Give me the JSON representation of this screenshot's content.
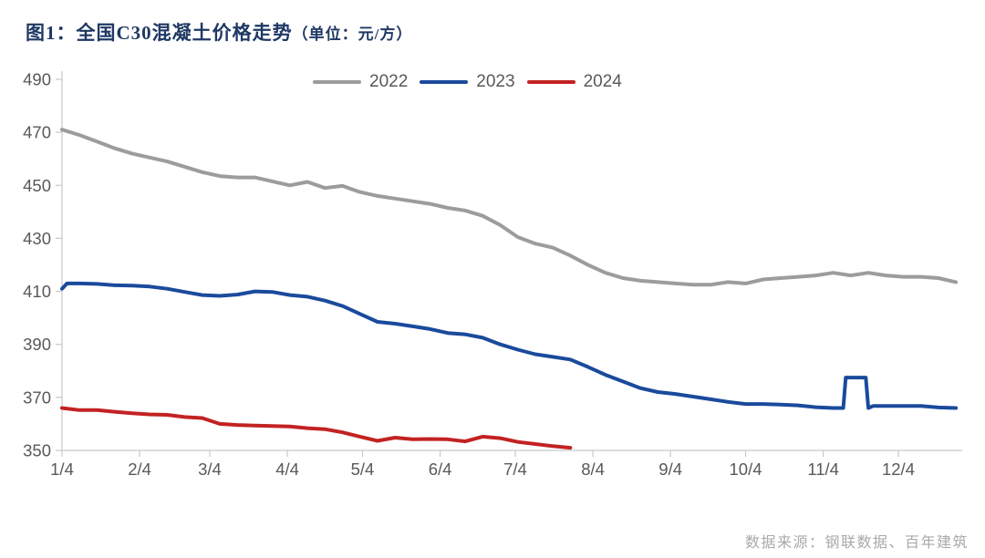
{
  "header": {
    "title_main": "图1：全国C30混凝土价格走势",
    "title_unit": "（单位：元/方）"
  },
  "legend": [
    {
      "label": "2022",
      "color": "#9c9c9c"
    },
    {
      "label": "2023",
      "color": "#1a4a9c"
    },
    {
      "label": "2024",
      "color": "#c32222"
    }
  ],
  "footer": {
    "source": "数据来源：钢联数据、百年建筑"
  },
  "chart_data": {
    "type": "line",
    "title": "全国C30混凝土价格走势",
    "unit": "元/方",
    "xlabel": "",
    "ylabel": "",
    "ylim": [
      350,
      490
    ],
    "yticks": [
      350,
      370,
      390,
      410,
      430,
      450,
      470,
      490
    ],
    "xticks": [
      "1/4",
      "2/4",
      "3/4",
      "4/4",
      "5/4",
      "6/4",
      "7/4",
      "8/4",
      "9/4",
      "10/4",
      "11/4",
      "12/4"
    ],
    "grid": false,
    "legend_position": "top-center",
    "axis_color": "#c8c8c8",
    "label_color": "#595959",
    "series": [
      {
        "name": "2022",
        "color": "#9c9c9c",
        "points": [
          [
            "1/4",
            471
          ],
          [
            "1/11",
            469
          ],
          [
            "1/18",
            466.5
          ],
          [
            "1/25",
            464
          ],
          [
            "2/1",
            462
          ],
          [
            "2/8",
            460.5
          ],
          [
            "2/15",
            459
          ],
          [
            "2/22",
            457
          ],
          [
            "3/1",
            455
          ],
          [
            "3/8",
            453.5
          ],
          [
            "3/15",
            453
          ],
          [
            "3/22",
            453
          ],
          [
            "3/29",
            451.5
          ],
          [
            "4/5",
            450
          ],
          [
            "4/12",
            451.3
          ],
          [
            "4/19",
            449
          ],
          [
            "4/26",
            449.8
          ],
          [
            "5/3",
            447.5
          ],
          [
            "5/10",
            446
          ],
          [
            "5/17",
            445
          ],
          [
            "5/24",
            444
          ],
          [
            "5/31",
            443
          ],
          [
            "6/7",
            441.5
          ],
          [
            "6/14",
            440.5
          ],
          [
            "6/21",
            438.5
          ],
          [
            "6/28",
            435
          ],
          [
            "7/5",
            430.5
          ],
          [
            "7/12",
            428
          ],
          [
            "7/19",
            426.5
          ],
          [
            "7/26",
            423.5
          ],
          [
            "8/2",
            420
          ],
          [
            "8/9",
            417
          ],
          [
            "8/16",
            415
          ],
          [
            "8/23",
            414
          ],
          [
            "8/30",
            413.5
          ],
          [
            "9/6",
            413
          ],
          [
            "9/13",
            412.5
          ],
          [
            "9/20",
            412.5
          ],
          [
            "9/27",
            413.5
          ],
          [
            "10/4",
            413
          ],
          [
            "10/11",
            414.5
          ],
          [
            "10/18",
            415
          ],
          [
            "10/25",
            415.5
          ],
          [
            "11/1",
            416
          ],
          [
            "11/8",
            417
          ],
          [
            "11/15",
            416
          ],
          [
            "11/22",
            417
          ],
          [
            "11/29",
            416
          ],
          [
            "12/6",
            415.5
          ],
          [
            "12/13",
            415.5
          ],
          [
            "12/20",
            415
          ],
          [
            "12/27",
            413.5
          ]
        ]
      },
      {
        "name": "2023",
        "color": "#1a4a9c",
        "points": [
          [
            "1/4",
            411
          ],
          [
            "1/6",
            413
          ],
          [
            "1/11",
            413
          ],
          [
            "1/18",
            412.8
          ],
          [
            "1/25",
            412.3
          ],
          [
            "2/1",
            412.2
          ],
          [
            "2/8",
            411.8
          ],
          [
            "2/15",
            411
          ],
          [
            "2/22",
            409.8
          ],
          [
            "3/1",
            408.6
          ],
          [
            "3/8",
            408.3
          ],
          [
            "3/15",
            408.8
          ],
          [
            "3/22",
            410
          ],
          [
            "3/29",
            409.8
          ],
          [
            "4/5",
            408.6
          ],
          [
            "4/12",
            408
          ],
          [
            "4/19",
            406.5
          ],
          [
            "4/26",
            404.5
          ],
          [
            "5/3",
            401.5
          ],
          [
            "5/10",
            398.5
          ],
          [
            "5/17",
            397.8
          ],
          [
            "5/24",
            396.8
          ],
          [
            "5/31",
            395.8
          ],
          [
            "6/7",
            394.3
          ],
          [
            "6/14",
            393.8
          ],
          [
            "6/21",
            392.5
          ],
          [
            "6/28",
            390
          ],
          [
            "7/5",
            388
          ],
          [
            "7/12",
            386.3
          ],
          [
            "7/19",
            385.3
          ],
          [
            "7/26",
            384.3
          ],
          [
            "8/2",
            381.5
          ],
          [
            "8/9",
            378.5
          ],
          [
            "8/16",
            376
          ],
          [
            "8/23",
            373.5
          ],
          [
            "8/30",
            372
          ],
          [
            "9/6",
            371.3
          ],
          [
            "9/13",
            370.3
          ],
          [
            "9/20",
            369.3
          ],
          [
            "9/27",
            368.3
          ],
          [
            "10/4",
            367.5
          ],
          [
            "10/11",
            367.5
          ],
          [
            "10/18",
            367.3
          ],
          [
            "10/25",
            367
          ],
          [
            "11/1",
            366.3
          ],
          [
            "11/8",
            366
          ],
          [
            "11/12",
            366
          ],
          [
            "11/13",
            377.5
          ],
          [
            "11/21",
            377.5
          ],
          [
            "11/22",
            366
          ],
          [
            "11/24",
            366.8
          ],
          [
            "11/29",
            366.8
          ],
          [
            "12/6",
            366.8
          ],
          [
            "12/13",
            366.8
          ],
          [
            "12/20",
            366.2
          ],
          [
            "12/27",
            366
          ]
        ]
      },
      {
        "name": "2024",
        "color": "#c32222",
        "points": [
          [
            "1/4",
            366
          ],
          [
            "1/11",
            365.2
          ],
          [
            "1/18",
            365.2
          ],
          [
            "1/25",
            364.6
          ],
          [
            "2/1",
            364
          ],
          [
            "2/8",
            363.6
          ],
          [
            "2/15",
            363.4
          ],
          [
            "2/22",
            362.6
          ],
          [
            "3/1",
            362.2
          ],
          [
            "3/8",
            360
          ],
          [
            "3/15",
            359.6
          ],
          [
            "3/22",
            359.4
          ],
          [
            "3/29",
            359.2
          ],
          [
            "4/5",
            359
          ],
          [
            "4/12",
            358.4
          ],
          [
            "4/19",
            358
          ],
          [
            "4/26",
            356.8
          ],
          [
            "5/3",
            355.2
          ],
          [
            "5/10",
            353.6
          ],
          [
            "5/17",
            354.8
          ],
          [
            "5/24",
            354.2
          ],
          [
            "5/31",
            354.3
          ],
          [
            "6/7",
            354.2
          ],
          [
            "6/14",
            353.4
          ],
          [
            "6/21",
            355.2
          ],
          [
            "6/28",
            354.6
          ],
          [
            "7/5",
            353.2
          ],
          [
            "7/12",
            352.4
          ],
          [
            "7/19",
            351.6
          ],
          [
            "7/26",
            351
          ]
        ]
      }
    ]
  }
}
